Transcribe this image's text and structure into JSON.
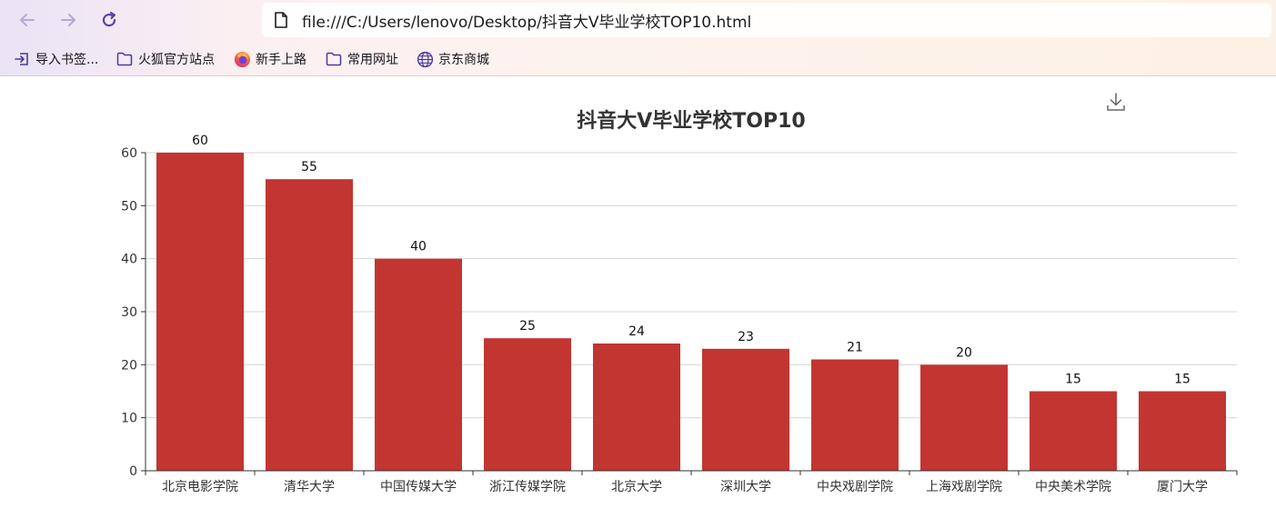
{
  "browser": {
    "url": "file:///C:/Users/lenovo/Desktop/抖音大V毕业学校TOP10.html",
    "bookmarks": [
      {
        "label": "导入书签...",
        "icon": "import-icon"
      },
      {
        "label": "火狐官方站点",
        "icon": "folder-icon"
      },
      {
        "label": "新手上路",
        "icon": "firefox-icon"
      },
      {
        "label": "常用网址",
        "icon": "folder-icon"
      },
      {
        "label": "京东商城",
        "icon": "globe-icon"
      }
    ]
  },
  "toolbox": {
    "save_icon": "download-icon"
  },
  "chart_data": {
    "type": "bar",
    "title": "抖音大V毕业学校TOP10",
    "categories": [
      "北京电影学院",
      "清华大学",
      "中国传媒大学",
      "浙江传媒学院",
      "北京大学",
      "深圳大学",
      "中央戏剧学院",
      "上海戏剧学院",
      "中央美术学院",
      "厦门大学"
    ],
    "values": [
      60,
      55,
      40,
      25,
      24,
      23,
      21,
      20,
      15,
      15
    ],
    "ylim": [
      0,
      60
    ],
    "yticks": [
      0,
      10,
      20,
      30,
      40,
      50,
      60
    ],
    "grid": true,
    "bar_color": "#c23531",
    "show_data_labels": true
  }
}
